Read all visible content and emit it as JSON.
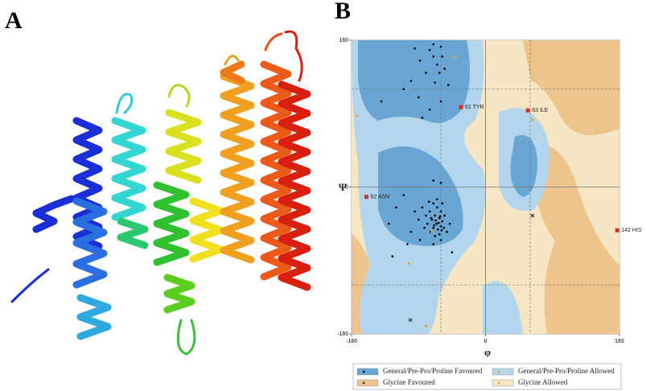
{
  "panels": [
    {
      "label": "A"
    },
    {
      "label": "B"
    }
  ],
  "chart_data": {
    "type": "scatter",
    "xlabel": "φ",
    "ylabel": "Ψ",
    "xlim": [
      -180,
      180
    ],
    "ylim": [
      -180,
      180
    ],
    "xticks": [
      -180,
      0,
      180
    ],
    "yticks": [
      -180,
      0,
      180
    ],
    "grid": true,
    "xgrid": [
      -60,
      60
    ],
    "ygrid": [
      -120,
      120
    ],
    "series": [
      {
        "name": "General/Pre-Pro/Proline Favoured",
        "color": "#000000",
        "region_color": "#6aa6d4",
        "x": [
          -95,
          -75,
          -60,
          -70,
          -88,
          -65,
          -55,
          -80,
          -100,
          -68,
          -50,
          -110,
          -90,
          -60,
          -75,
          -85,
          -140,
          -58,
          -70,
          -62,
          -70,
          -65,
          -60,
          -75,
          -68,
          -62,
          -58,
          -72,
          -66,
          -60,
          -70,
          -64,
          -55,
          -78,
          -74,
          -62,
          -68,
          -56,
          -80,
          -85,
          -90,
          -95,
          -100,
          -110,
          -120,
          -130,
          -105,
          -88,
          -52,
          -48,
          -60,
          -70,
          -65,
          -58,
          -76,
          -82,
          -63,
          -67,
          -61,
          -69,
          -59,
          -73,
          -125,
          -60,
          -70,
          -45
        ],
        "y": [
          170,
          168,
          172,
          160,
          155,
          150,
          145,
          140,
          130,
          128,
          125,
          120,
          110,
          105,
          95,
          85,
          105,
          160,
          175,
          140,
          -20,
          -25,
          -30,
          -30,
          -35,
          -38,
          -42,
          -40,
          -45,
          -48,
          -50,
          -52,
          -35,
          -45,
          -55,
          -58,
          -60,
          -50,
          -35,
          -25,
          -40,
          -30,
          -55,
          -10,
          -25,
          -45,
          -70,
          -65,
          -55,
          -45,
          -65,
          -70,
          -15,
          -20,
          -18,
          -50,
          -44,
          -41,
          -36,
          -47,
          -53,
          -38,
          -85,
          5,
          8,
          -80
        ]
      },
      {
        "name": "General/Pre-Pro/Proline Allowed",
        "color": "#f0a030",
        "region_color": "#b4d6ec",
        "x": [
          -40,
          -173,
          -103,
          -72,
          63,
          -80
        ],
        "y": [
          160,
          88,
          -93,
          -54,
          83,
          -170
        ]
      },
      {
        "name": "Glycine Favoured",
        "color": "#333333",
        "region_color": "#ecc48c",
        "x": [
          63,
          -101
        ],
        "y": [
          -35,
          -163
        ]
      },
      {
        "name": "Glycine Allowed",
        "color": "#f0a030",
        "region_color": "#f7e6c4",
        "x": [],
        "y": []
      }
    ],
    "outlier_color": "#d83020",
    "outliers": [
      {
        "label": "61 TYR",
        "x": -33,
        "y": 98
      },
      {
        "label": "63 ILE",
        "x": 57,
        "y": 94
      },
      {
        "label": "62 ASN",
        "x": -160,
        "y": -12
      },
      {
        "label": "142 HIS",
        "x": 177,
        "y": -53
      }
    ]
  }
}
